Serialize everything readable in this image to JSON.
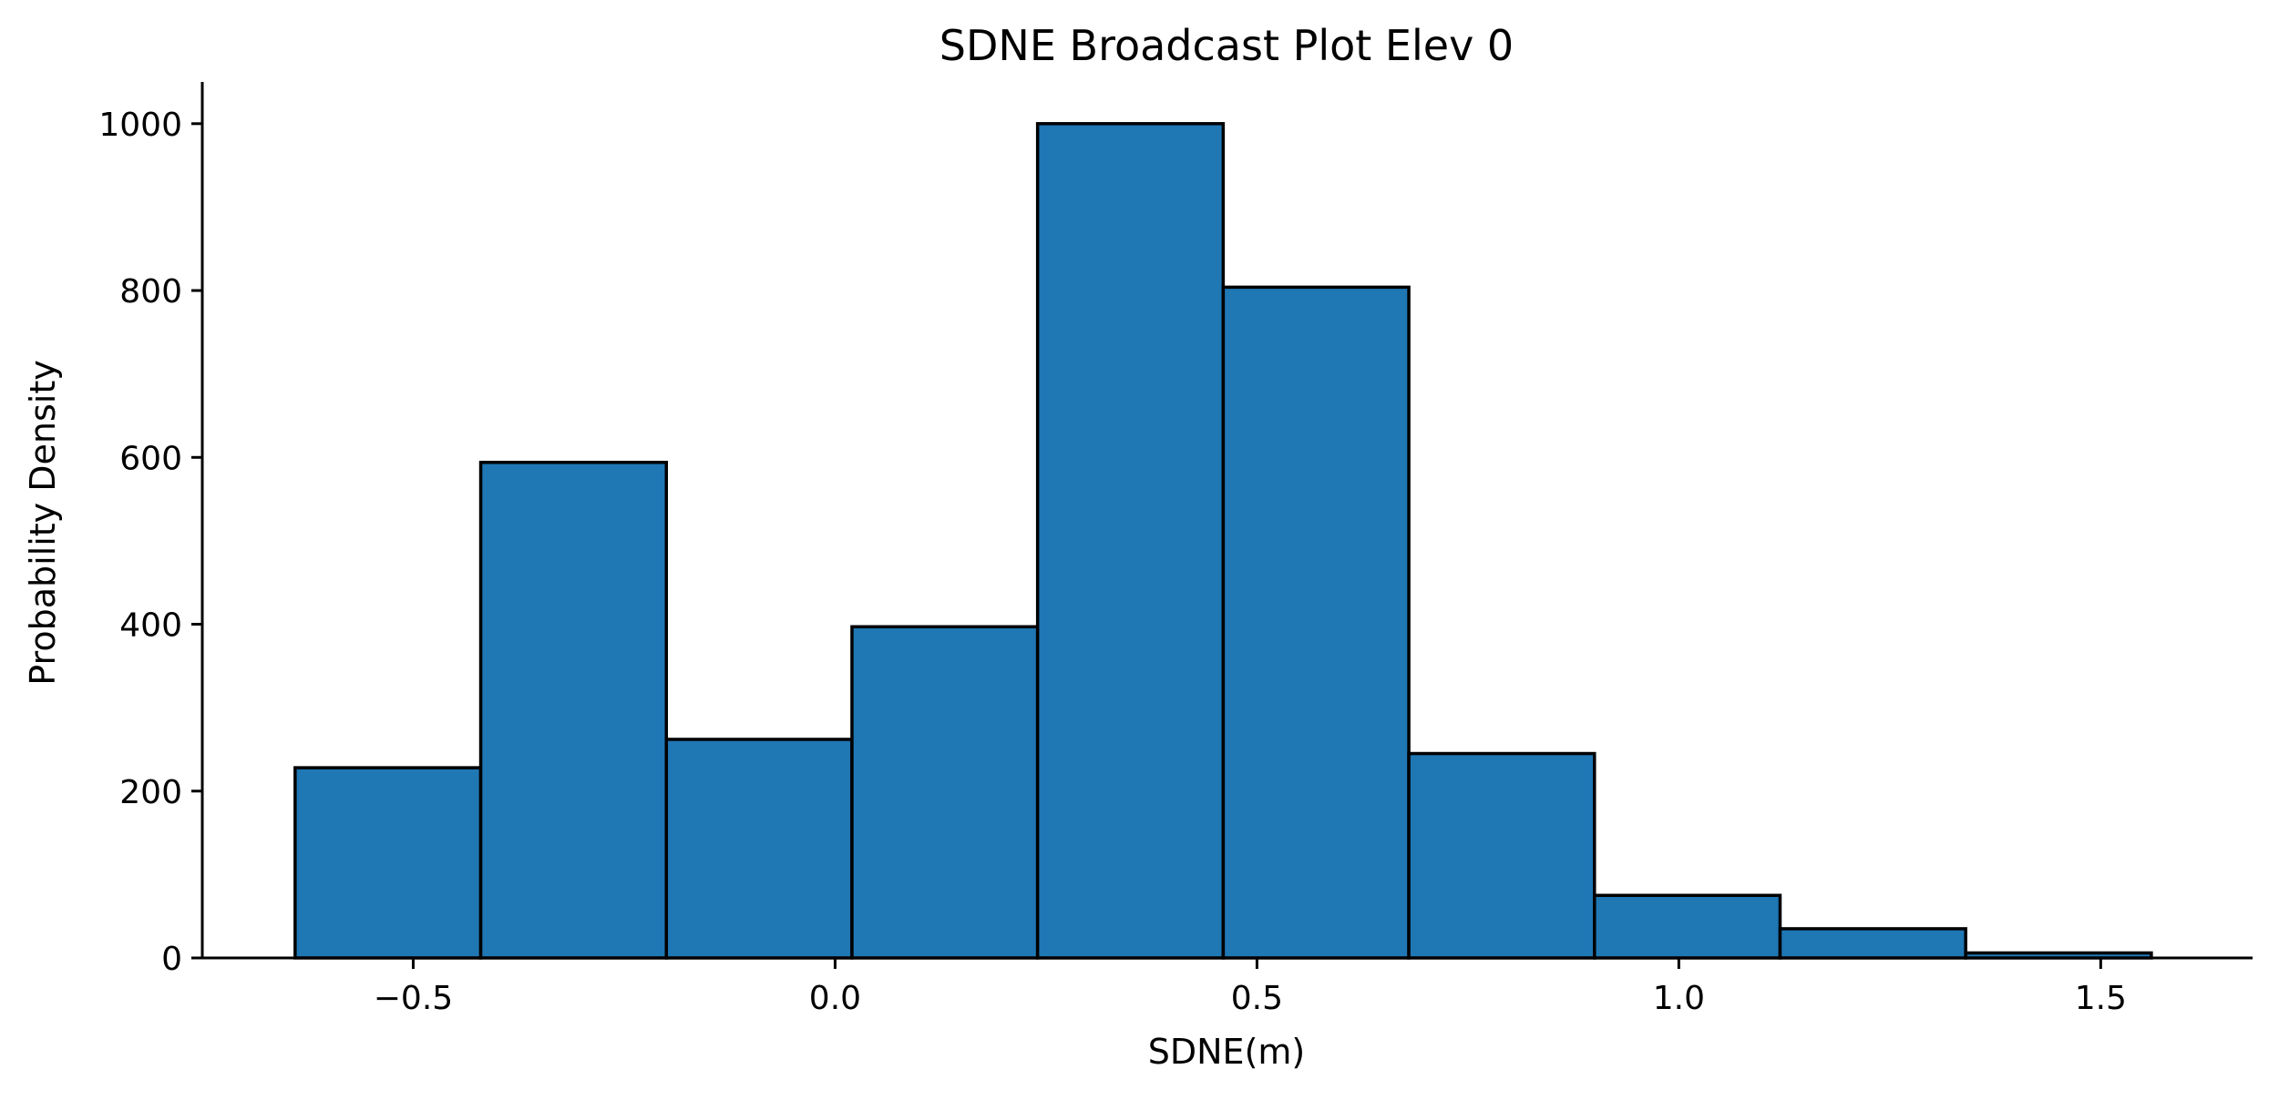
{
  "chart_data": {
    "type": "bar",
    "title": "SDNE Broadcast Plot Elev 0",
    "xlabel": "SDNE(m)",
    "ylabel": "Probability Density",
    "bin_edges": [
      -0.64,
      -0.42,
      -0.2,
      0.02,
      0.24,
      0.46,
      0.68,
      0.9,
      1.12,
      1.34,
      1.56
    ],
    "values": [
      228,
      594,
      262,
      397,
      1000,
      804,
      245,
      75,
      35,
      6
    ],
    "xlim": [
      -0.75,
      1.68
    ],
    "ylim": [
      0,
      1050
    ],
    "xticks": [
      -0.5,
      0.0,
      0.5,
      1.0,
      1.5
    ],
    "xtick_labels": [
      "−0.5",
      "0.0",
      "0.5",
      "1.0",
      "1.5"
    ],
    "yticks": [
      0,
      200,
      400,
      600,
      800,
      1000
    ],
    "ytick_labels": [
      "0",
      "200",
      "400",
      "600",
      "800",
      "1000"
    ],
    "bar_color": "#1f77b4",
    "edge_color": "#000000",
    "grid": false,
    "legend": "none"
  }
}
